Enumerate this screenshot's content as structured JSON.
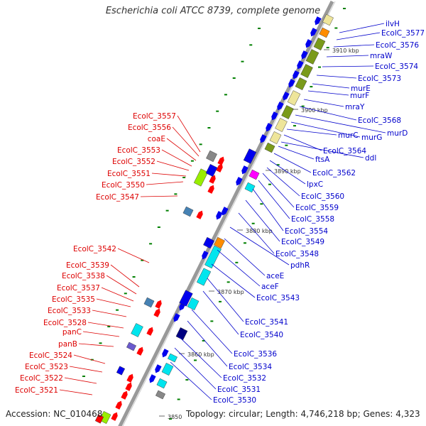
{
  "title": "Escherichia coli ATCC 8739, complete genome",
  "footer": {
    "accession": "Accession: NC_010468",
    "summary": "Topology: circular; Length: 4,746,218 bp; Genes: 4,323"
  },
  "colors": {
    "forward_label": "#0000cc",
    "reverse_label": "#dd0000",
    "backbone": "#999999",
    "blue_gene": "#0000ee",
    "red_gene": "#ff0000",
    "cyan_gene": "#00e5ee",
    "olive_gene": "#7a9a1a",
    "lime_gene": "#99ee00",
    "khaki_gene": "#eee59a",
    "orange_gene": "#ff8c00",
    "steel_gene": "#4682b4",
    "navy_gene": "#000080",
    "gray_gene": "#888888",
    "slate_gene": "#6a5acd",
    "magenta_gene": "#ff00ff",
    "tick_green": "#008000"
  },
  "ticks": [
    "3910 kbp",
    "3900 kbp",
    "3890 kbp",
    "3880 kbp",
    "3870 kbp",
    "3860 kbp",
    "3850"
  ],
  "forward_labels": [
    "ilvH",
    "EcolC_3577",
    "EcolC_3576",
    "mraW",
    "EcolC_3574",
    "EcolC_3573",
    "murE",
    "murF",
    "mraY",
    "EcolC_3568",
    "murD",
    "murG",
    "murC",
    "EcolC_3564",
    "ddl",
    "ftsA",
    "EcolC_3562",
    "lpxC",
    "EcolC_3560",
    "EcolC_3559",
    "EcolC_3558",
    "EcolC_3554",
    "EcolC_3549",
    "EcolC_3548",
    "pdhR",
    "aceE",
    "aceF",
    "EcolC_3543",
    "EcolC_3541",
    "EcolC_3540",
    "EcolC_3536",
    "EcolC_3534",
    "EcolC_3532",
    "EcolC_3531",
    "EcolC_3530"
  ],
  "reverse_labels": [
    "EcolC_3557",
    "EcolC_3556",
    "coaE",
    "EcolC_3553",
    "EcolC_3552",
    "EcolC_3551",
    "EcolC_3550",
    "EcolC_3547",
    "EcolC_3542",
    "EcolC_3539",
    "EcolC_3538",
    "EcolC_3537",
    "EcolC_3535",
    "EcolC_3533",
    "EcolC_3528",
    "panC",
    "panB",
    "EcolC_3524",
    "EcolC_3523",
    "EcolC_3522",
    "EcolC_3521"
  ]
}
